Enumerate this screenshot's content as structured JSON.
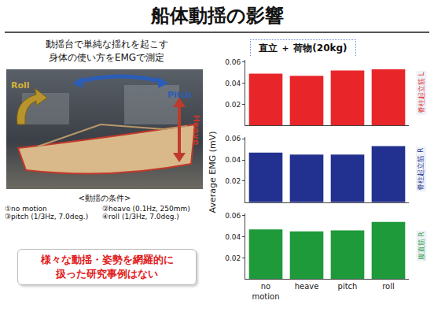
{
  "slide": {
    "title": "船体動揺の影響",
    "intro": [
      "動揺台で単純な揺れを起こす",
      "身体の使い方をEMGで測定"
    ],
    "photo_labels": {
      "roll": "Roll",
      "pitch": "Pitch",
      "heave": "Heave"
    },
    "conditions_heading": "<動揺の条件>",
    "conditions": [
      "①no motion",
      "②heave (0.1Hz, 250mm)",
      "③pitch (1/3Hz, 7.0deg.)",
      "④roll (1/3Hz, 7.0deg.)"
    ],
    "conclusion": [
      "様々な動揺・姿勢を網羅的に",
      "扱った研究事例はない"
    ]
  },
  "chart_panel": {
    "heading": "直立 ＋ 荷物(20kg)",
    "y_label": "Average EMG (mV)"
  },
  "chart_data": [
    {
      "type": "bar",
      "title": "脊柱起立筋 L",
      "categories": [
        "no motion",
        "heave",
        "pitch",
        "roll"
      ],
      "values": [
        0.049,
        0.047,
        0.052,
        0.053
      ],
      "color": "#e8262a",
      "ylim": [
        0,
        0.062
      ],
      "yticks": [
        0.02,
        0.04,
        0.06
      ],
      "tick_labels": "y"
    },
    {
      "type": "bar",
      "title": "脊柱起立筋 R",
      "categories": [
        "no motion",
        "heave",
        "pitch",
        "roll"
      ],
      "values": [
        0.047,
        0.045,
        0.045,
        0.053
      ],
      "color": "#22308f",
      "ylim": [
        0,
        0.062
      ],
      "yticks": [
        0.02,
        0.04,
        0.06
      ],
      "tick_labels": "y"
    },
    {
      "type": "bar",
      "title": "腹直筋 R",
      "categories": [
        "no motion",
        "heave",
        "pitch",
        "roll"
      ],
      "values": [
        0.047,
        0.045,
        0.046,
        0.054
      ],
      "color": "#1e9a3a",
      "ylim": [
        0,
        0.062
      ],
      "yticks": [
        0.02,
        0.04,
        0.06
      ]
    }
  ]
}
